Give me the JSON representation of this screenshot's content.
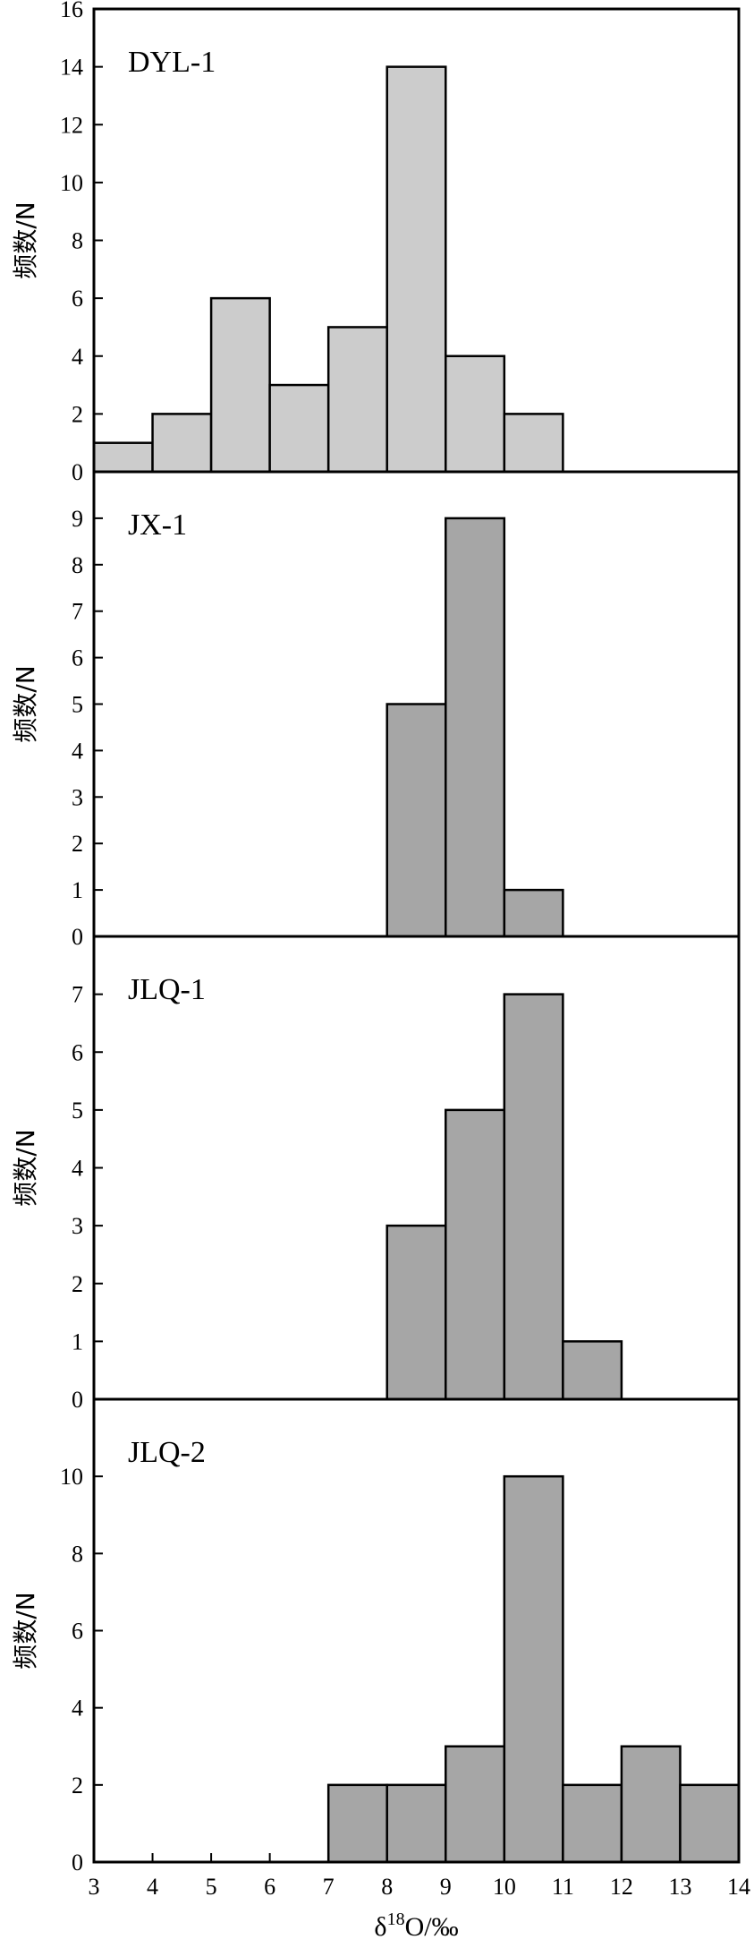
{
  "chart_data": [
    {
      "type": "bar",
      "title": "DYL-1",
      "ylabel": "频数/N",
      "x_bins": [
        [
          3,
          4
        ],
        [
          4,
          5
        ],
        [
          5,
          6
        ],
        [
          6,
          7
        ],
        [
          7,
          8
        ],
        [
          8,
          9
        ],
        [
          9,
          10
        ],
        [
          10,
          11
        ]
      ],
      "values": [
        1,
        2,
        6,
        3,
        5,
        14,
        4,
        2
      ],
      "ylim": [
        0,
        16
      ],
      "yticks": [
        0,
        2,
        4,
        6,
        8,
        10,
        12,
        14,
        16
      ],
      "bar_color": "#cccccc"
    },
    {
      "type": "bar",
      "title": "JX-1",
      "ylabel": "频数/N",
      "x_bins": [
        [
          8,
          9
        ],
        [
          9,
          10
        ],
        [
          10,
          11
        ]
      ],
      "values": [
        5,
        9,
        1
      ],
      "ylim": [
        0,
        10
      ],
      "yticks": [
        0,
        1,
        2,
        3,
        4,
        5,
        6,
        7,
        8,
        9
      ],
      "bar_color": "#a6a6a6"
    },
    {
      "type": "bar",
      "title": "JLQ-1",
      "ylabel": "频数/N",
      "x_bins": [
        [
          8,
          9
        ],
        [
          9,
          10
        ],
        [
          10,
          11
        ],
        [
          11,
          12
        ]
      ],
      "values": [
        3,
        5,
        7,
        1
      ],
      "ylim": [
        0,
        8
      ],
      "yticks": [
        0,
        1,
        2,
        3,
        4,
        5,
        6,
        7
      ],
      "bar_color": "#a6a6a6"
    },
    {
      "type": "bar",
      "title": "JLQ-2",
      "ylabel": "频数/N",
      "x_bins": [
        [
          7,
          8
        ],
        [
          8,
          9
        ],
        [
          9,
          10
        ],
        [
          10,
          11
        ],
        [
          11,
          12
        ],
        [
          12,
          13
        ],
        [
          13,
          14
        ]
      ],
      "values": [
        2,
        2,
        3,
        10,
        2,
        3,
        2
      ],
      "ylim": [
        0,
        12
      ],
      "yticks": [
        0,
        2,
        4,
        6,
        8,
        10
      ],
      "bar_color": "#a6a6a6"
    }
  ],
  "x_axis": {
    "label_prefix": "δ",
    "label_sup": "18",
    "label_suffix": "O/‰",
    "xlim": [
      3,
      14
    ],
    "xticks": [
      3,
      4,
      5,
      6,
      7,
      8,
      9,
      10,
      11,
      12,
      13,
      14
    ]
  }
}
